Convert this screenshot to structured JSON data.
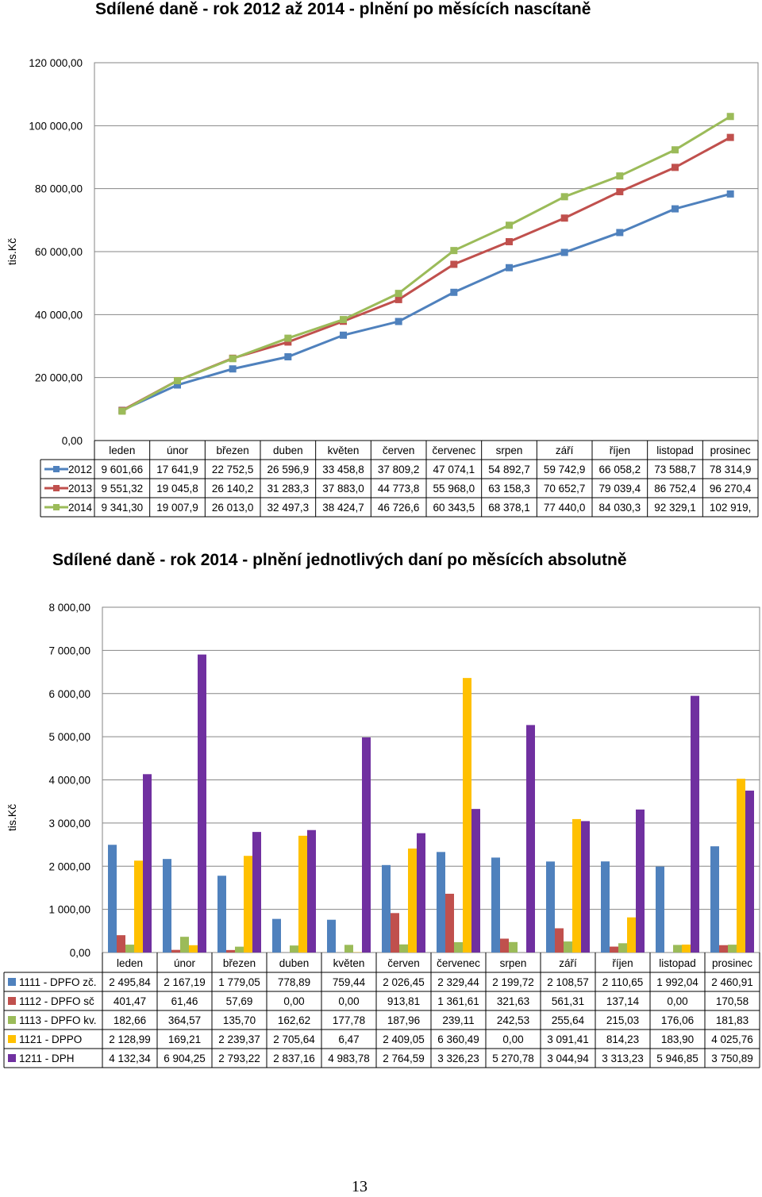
{
  "page": {
    "number": "13"
  },
  "chart_data": [
    {
      "type": "line",
      "title": "Sdílené daně - rok 2012 až 2014 - plnění po měsících nascítaně",
      "ylabel": "tis.Kč",
      "ylim": [
        0,
        120000
      ],
      "yticks": [
        "0,00",
        "20 000,00",
        "40 000,00",
        "60 000,00",
        "80 000,00",
        "100 000,00",
        "120 000,00"
      ],
      "grid": true,
      "categories": [
        "leden",
        "únor",
        "březen",
        "duben",
        "květen",
        "červen",
        "červenec",
        "srpen",
        "září",
        "říjen",
        "listopad",
        "prosinec"
      ],
      "series": [
        {
          "name": "2012",
          "color": "#4f81bd",
          "values": [
            9601.66,
            17641.9,
            22752.5,
            26596.9,
            33458.8,
            37809.2,
            47074.1,
            54892.7,
            59742.9,
            66058.2,
            73588.7,
            78314.9
          ],
          "labels": [
            "9 601,66",
            "17 641,9",
            "22 752,5",
            "26 596,9",
            "33 458,8",
            "37 809,2",
            "47 074,1",
            "54 892,7",
            "59 742,9",
            "66 058,2",
            "73 588,7",
            "78 314,9"
          ]
        },
        {
          "name": "2013",
          "color": "#c0504d",
          "values": [
            9551.32,
            19045.8,
            26140.2,
            31283.3,
            37883.0,
            44773.8,
            55968.0,
            63158.3,
            70652.7,
            79039.4,
            86752.4,
            96270.4
          ],
          "labels": [
            "9 551,32",
            "19 045,8",
            "26 140,2",
            "31 283,3",
            "37 883,0",
            "44 773,8",
            "55 968,0",
            "63 158,3",
            "70 652,7",
            "79 039,4",
            "86 752,4",
            "96 270,4"
          ]
        },
        {
          "name": "2014",
          "color": "#9bbb59",
          "values": [
            9341.3,
            19007.9,
            26013.0,
            32497.3,
            38424.7,
            46726.6,
            60343.5,
            68378.1,
            77440.0,
            84030.3,
            92329.1,
            102919
          ],
          "labels": [
            "9 341,30",
            "19 007,9",
            "26 013,0",
            "32 497,3",
            "38 424,7",
            "46 726,6",
            "60 343,5",
            "68 378,1",
            "77 440,0",
            "84 030,3",
            "92 329,1",
            "102 919,"
          ]
        }
      ]
    },
    {
      "type": "bar",
      "title": "Sdílené daně - rok 2014 - plnění jednotlivých daní po měsících absolutně",
      "ylabel": "tis.Kč",
      "ylim": [
        0,
        8000
      ],
      "yticks": [
        "0,00",
        "1 000,00",
        "2 000,00",
        "3 000,00",
        "4 000,00",
        "5 000,00",
        "6 000,00",
        "7 000,00",
        "8 000,00"
      ],
      "grid": true,
      "categories": [
        "leden",
        "únor",
        "březen",
        "duben",
        "květen",
        "červen",
        "červenec",
        "srpen",
        "září",
        "říjen",
        "listopad",
        "prosinec"
      ],
      "series": [
        {
          "name": "1111 - DPFO zč.",
          "color": "#4f81bd",
          "values": [
            2495.84,
            2167.19,
            1779.05,
            778.89,
            759.44,
            2026.45,
            2329.44,
            2199.72,
            2108.57,
            2110.65,
            1992.04,
            2460.91
          ],
          "labels": [
            "2 495,84",
            "2 167,19",
            "1 779,05",
            "778,89",
            "759,44",
            "2 026,45",
            "2 329,44",
            "2 199,72",
            "2 108,57",
            "2 110,65",
            "1 992,04",
            "2 460,91"
          ]
        },
        {
          "name": "1112 - DPFO sč",
          "color": "#c0504d",
          "values": [
            401.47,
            61.46,
            57.69,
            0,
            0,
            913.81,
            1361.61,
            321.63,
            561.31,
            137.14,
            0,
            170.58
          ],
          "labels": [
            "401,47",
            "61,46",
            "57,69",
            "0,00",
            "0,00",
            "913,81",
            "1 361,61",
            "321,63",
            "561,31",
            "137,14",
            "0,00",
            "170,58"
          ]
        },
        {
          "name": "1113 - DPFO kv.",
          "color": "#9bbb59",
          "values": [
            182.66,
            364.57,
            135.7,
            162.62,
            177.78,
            187.96,
            239.11,
            242.53,
            255.64,
            215.03,
            176.06,
            181.83
          ],
          "labels": [
            "182,66",
            "364,57",
            "135,70",
            "162,62",
            "177,78",
            "187,96",
            "239,11",
            "242,53",
            "255,64",
            "215,03",
            "176,06",
            "181,83"
          ]
        },
        {
          "name": "1121 - DPPO",
          "color": "#ffc000",
          "values": [
            2128.99,
            169.21,
            2239.37,
            2705.64,
            6.47,
            2409.05,
            6360.49,
            0,
            3091.41,
            814.23,
            183.9,
            4025.76
          ],
          "labels": [
            "2 128,99",
            "169,21",
            "2 239,37",
            "2 705,64",
            "6,47",
            "2 409,05",
            "6 360,49",
            "0,00",
            "3 091,41",
            "814,23",
            "183,90",
            "4 025,76"
          ]
        },
        {
          "name": "1211 - DPH",
          "color": "#7030a0",
          "values": [
            4132.34,
            6904.25,
            2793.22,
            2837.16,
            4983.78,
            2764.59,
            3326.23,
            5270.78,
            3044.94,
            3313.23,
            5946.85,
            3750.89
          ],
          "labels": [
            "4 132,34",
            "6 904,25",
            "2 793,22",
            "2 837,16",
            "4 983,78",
            "2 764,59",
            "3 326,23",
            "5 270,78",
            "3 044,94",
            "3 313,23",
            "5 946,85",
            "3 750,89"
          ]
        }
      ]
    }
  ]
}
